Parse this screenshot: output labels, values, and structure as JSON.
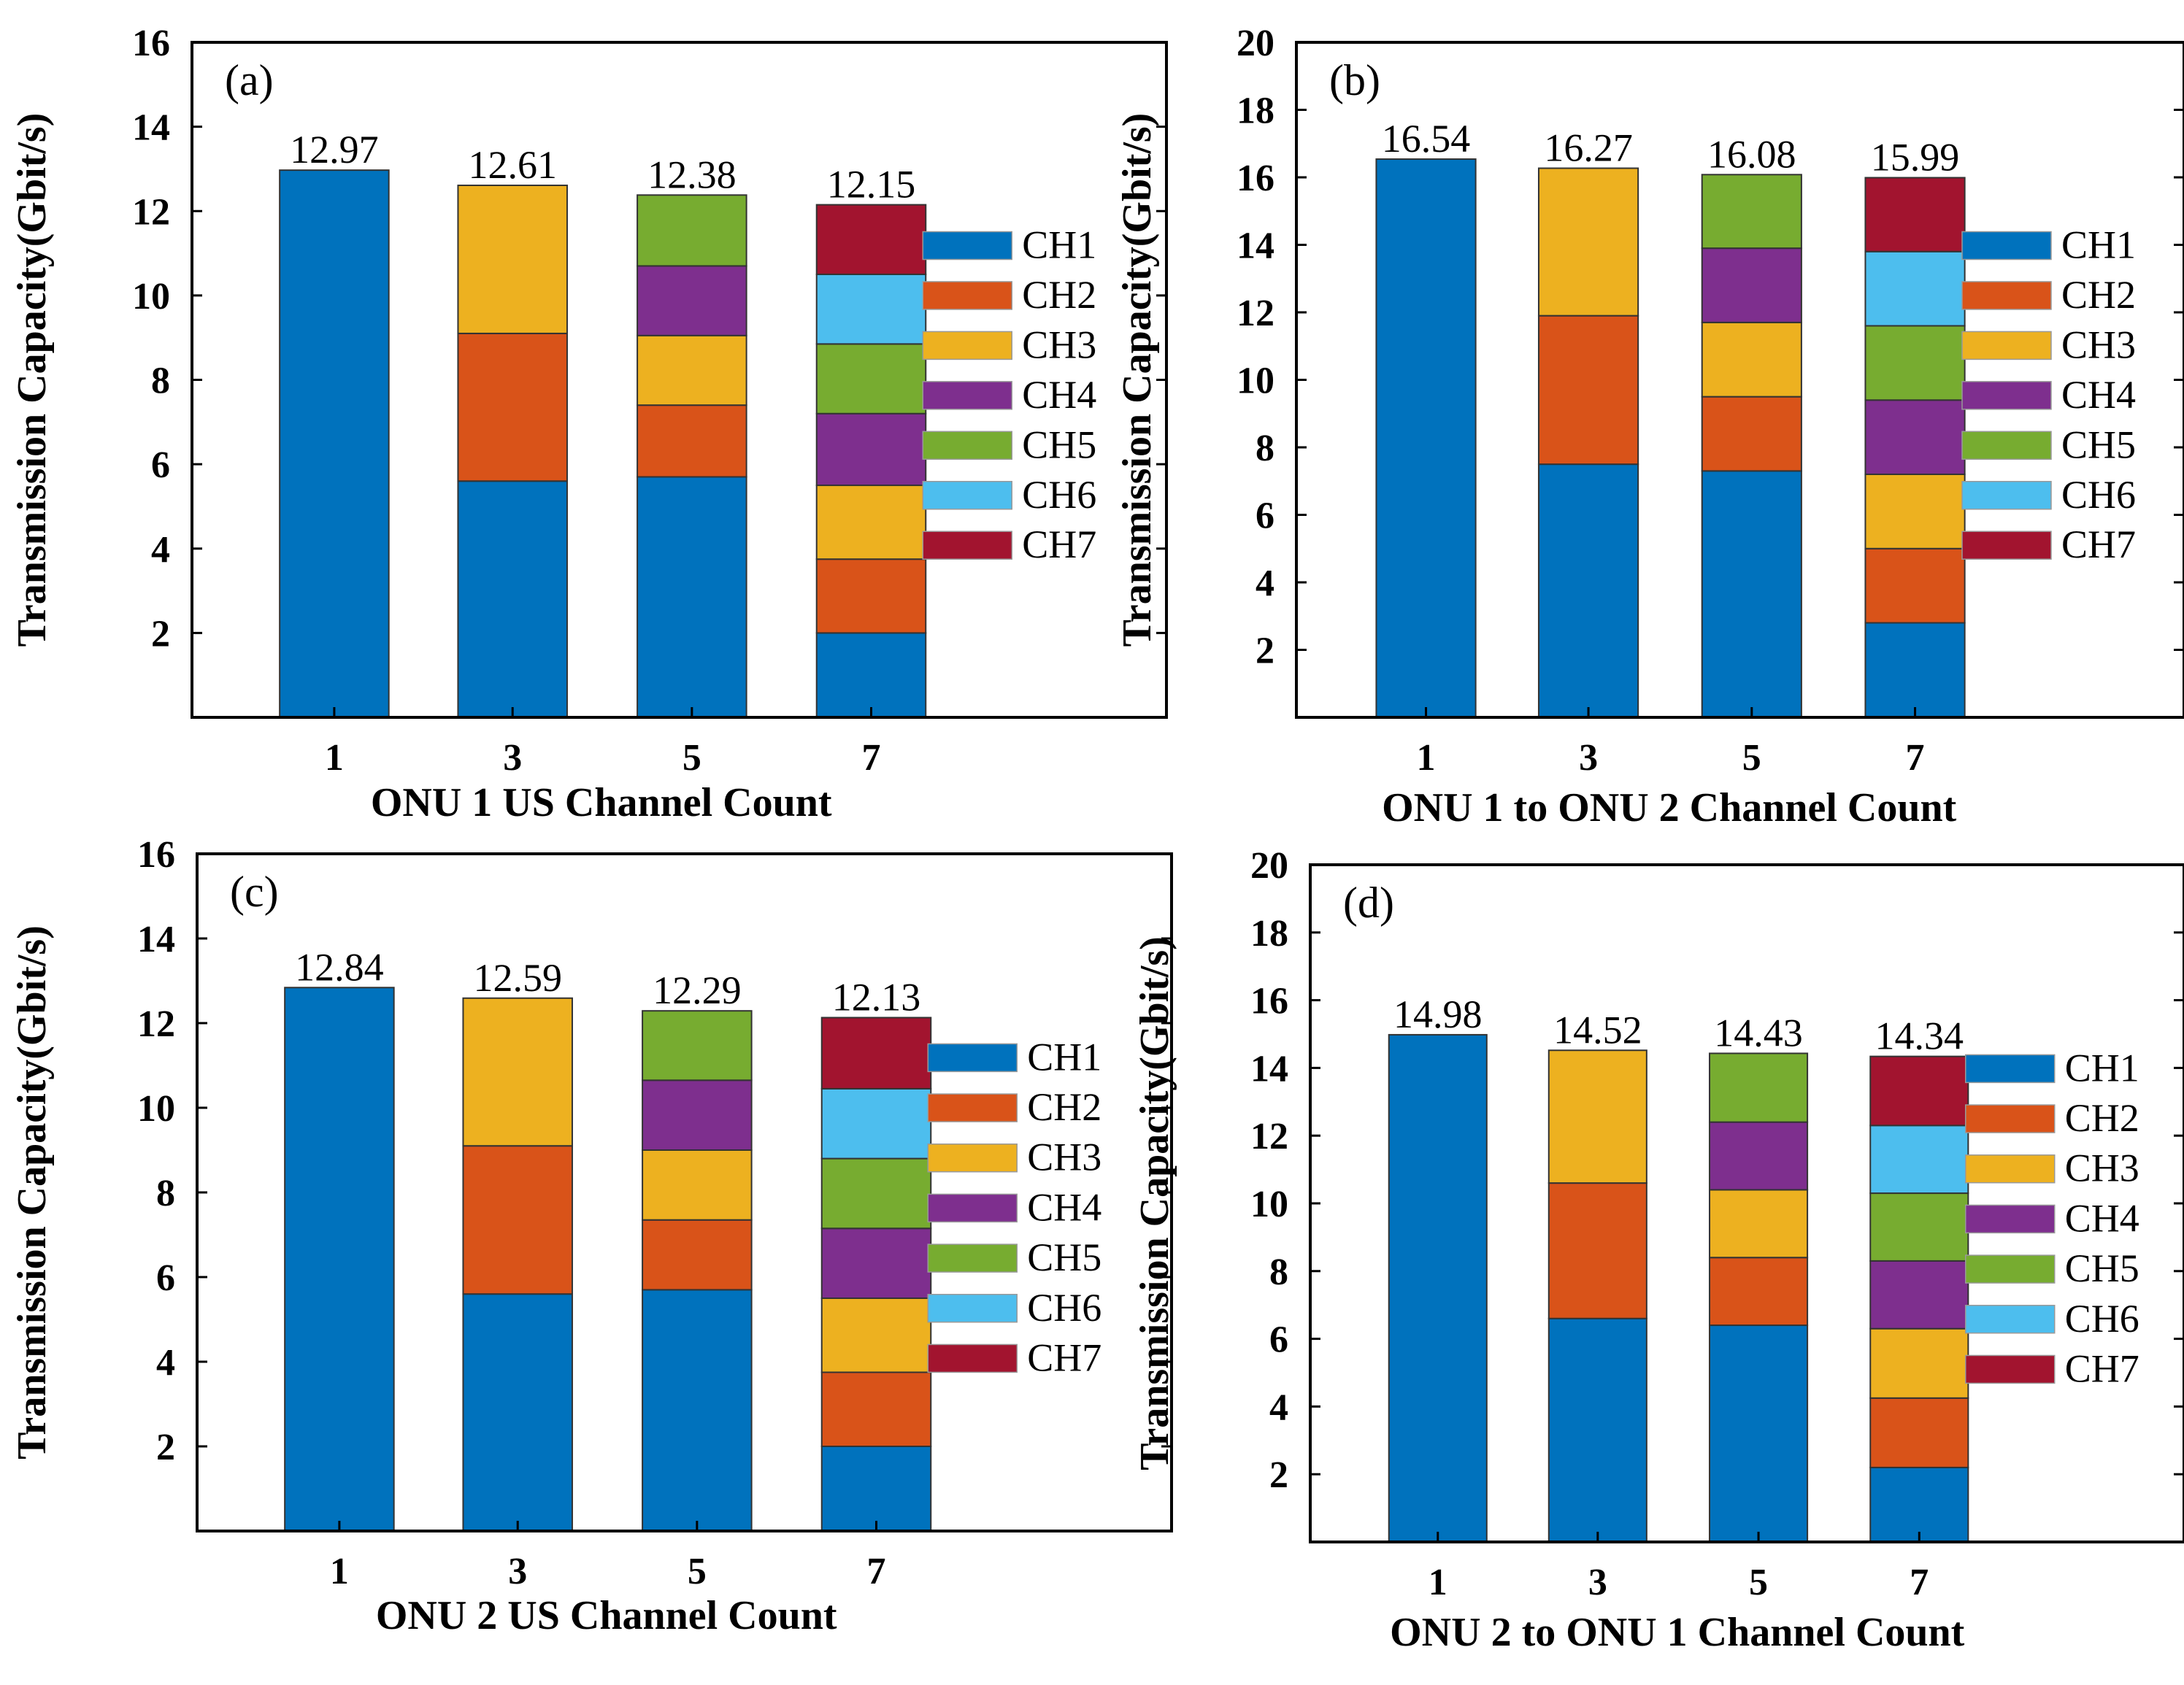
{
  "colors": {
    "CH1": "#0072BD",
    "CH2": "#D95319",
    "CH3": "#EDB120",
    "CH4": "#7E2F8E",
    "CH5": "#77AC30",
    "CH6": "#4DBEEE",
    "CH7": "#A2142F"
  },
  "chart_data": [
    {
      "type": "bar",
      "stacked": true,
      "panel_label": "(a)",
      "title": "",
      "xlabel": "ONU 1 US Channel Count",
      "ylabel": "Transmission Capacity(Gbit/s)",
      "categories": [
        "1",
        "3",
        "5",
        "7"
      ],
      "ylim": [
        0,
        16
      ],
      "yticks": [
        2,
        4,
        6,
        8,
        10,
        12,
        14,
        16
      ],
      "totals": [
        "12.97",
        "12.61",
        "12.38",
        "12.15"
      ],
      "legend_position": "center-right",
      "series": [
        {
          "name": "CH1",
          "values": [
            12.97,
            5.6,
            5.7,
            2.0
          ]
        },
        {
          "name": "CH2",
          "values": [
            0,
            3.5,
            1.7,
            1.75
          ]
        },
        {
          "name": "CH3",
          "values": [
            0,
            3.51,
            1.65,
            1.75
          ]
        },
        {
          "name": "CH4",
          "values": [
            0,
            0,
            1.65,
            1.7
          ]
        },
        {
          "name": "CH5",
          "values": [
            0,
            0,
            1.68,
            1.65
          ]
        },
        {
          "name": "CH6",
          "values": [
            0,
            0,
            0,
            1.65
          ]
        },
        {
          "name": "CH7",
          "values": [
            0,
            0,
            0,
            1.65
          ]
        }
      ]
    },
    {
      "type": "bar",
      "stacked": true,
      "panel_label": "(b)",
      "title": "",
      "xlabel": "ONU 1 to ONU 2 Channel Count",
      "ylabel": "Transmission Capacity(Gbit/s)",
      "categories": [
        "1",
        "3",
        "5",
        "7"
      ],
      "ylim": [
        0,
        20
      ],
      "yticks": [
        2,
        4,
        6,
        8,
        10,
        12,
        14,
        16,
        18,
        20
      ],
      "totals": [
        "16.54",
        "16.27",
        "16.08",
        "15.99"
      ],
      "legend_position": "center-right",
      "series": [
        {
          "name": "CH1",
          "values": [
            16.54,
            7.5,
            7.3,
            2.8
          ]
        },
        {
          "name": "CH2",
          "values": [
            0,
            4.4,
            2.2,
            2.2
          ]
        },
        {
          "name": "CH3",
          "values": [
            0,
            4.37,
            2.2,
            2.2
          ]
        },
        {
          "name": "CH4",
          "values": [
            0,
            0,
            2.2,
            2.2
          ]
        },
        {
          "name": "CH5",
          "values": [
            0,
            0,
            2.18,
            2.2
          ]
        },
        {
          "name": "CH6",
          "values": [
            0,
            0,
            0,
            2.2
          ]
        },
        {
          "name": "CH7",
          "values": [
            0,
            0,
            0,
            2.19
          ]
        }
      ]
    },
    {
      "type": "bar",
      "stacked": true,
      "panel_label": "(c)",
      "title": "",
      "xlabel": "ONU 2 US Channel Count",
      "ylabel": "Transmission Capacity(Gbit/s)",
      "categories": [
        "1",
        "3",
        "5",
        "7"
      ],
      "ylim": [
        0,
        16
      ],
      "yticks": [
        2,
        4,
        6,
        8,
        10,
        12,
        14,
        16
      ],
      "totals": [
        "12.84",
        "12.59",
        "12.29",
        "12.13"
      ],
      "legend_position": "center-right",
      "series": [
        {
          "name": "CH1",
          "values": [
            12.84,
            5.6,
            5.7,
            2.0
          ]
        },
        {
          "name": "CH2",
          "values": [
            0,
            3.5,
            1.65,
            1.75
          ]
        },
        {
          "name": "CH3",
          "values": [
            0,
            3.49,
            1.65,
            1.75
          ]
        },
        {
          "name": "CH4",
          "values": [
            0,
            0,
            1.65,
            1.65
          ]
        },
        {
          "name": "CH5",
          "values": [
            0,
            0,
            1.64,
            1.65
          ]
        },
        {
          "name": "CH6",
          "values": [
            0,
            0,
            0,
            1.65
          ]
        },
        {
          "name": "CH7",
          "values": [
            0,
            0,
            0,
            1.68
          ]
        }
      ]
    },
    {
      "type": "bar",
      "stacked": true,
      "panel_label": "(d)",
      "title": "",
      "xlabel": "ONU 2 to ONU 1 Channel Count",
      "ylabel": "Transmission Capacity(Gbit/s)",
      "categories": [
        "1",
        "3",
        "5",
        "7"
      ],
      "ylim": [
        0,
        20
      ],
      "yticks": [
        2,
        4,
        6,
        8,
        10,
        12,
        14,
        16,
        18,
        20
      ],
      "totals": [
        "14.98",
        "14.52",
        "14.43",
        "14.34"
      ],
      "legend_position": "center-right",
      "series": [
        {
          "name": "CH1",
          "values": [
            14.98,
            6.6,
            6.4,
            2.2
          ]
        },
        {
          "name": "CH2",
          "values": [
            0,
            4.0,
            2.0,
            2.05
          ]
        },
        {
          "name": "CH3",
          "values": [
            0,
            3.92,
            2.0,
            2.05
          ]
        },
        {
          "name": "CH4",
          "values": [
            0,
            0,
            2.0,
            2.0
          ]
        },
        {
          "name": "CH5",
          "values": [
            0,
            0,
            2.03,
            2.0
          ]
        },
        {
          "name": "CH6",
          "values": [
            0,
            0,
            0,
            2.0
          ]
        },
        {
          "name": "CH7",
          "values": [
            0,
            0,
            0,
            2.04
          ]
        }
      ]
    }
  ]
}
